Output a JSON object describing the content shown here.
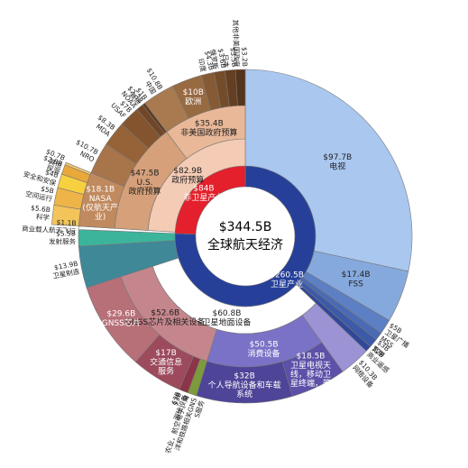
{
  "chart_data": {
    "type": "sunburst",
    "center": {
      "value": 344.5,
      "value_label": "$344.5B",
      "name": "全球航天经济"
    },
    "nodes": [
      {
        "name": "卫星产业",
        "value": 260.5,
        "value_label": "$260.5B",
        "color": "#26409a",
        "children": [
          {
            "name": "电视",
            "value": 97.7,
            "value_label": "$97.7B",
            "color": "#a9c7ef"
          },
          {
            "name": "FSS",
            "value": 17.4,
            "value_label": "$17.4B",
            "color": "#86a9dd"
          },
          {
            "name": "卫星广播",
            "value": 5,
            "value_label": "$5B",
            "color": "#5d7fc4"
          },
          {
            "name": "MSS",
            "value": 2.6,
            "color": "#4a6ab5"
          },
          {
            "name": "宽带",
            "value": 3,
            "value_label": "$3B",
            "color": "#3d5aa8"
          },
          {
            "name": "商业遥感",
            "value": 2,
            "value_label": "$2B",
            "color": "#30489a"
          },
          {
            "name": "卫星地面设备",
            "value": 60.8,
            "value_label": "$60.8B",
            "color": "#ffffff",
            "children": [
              {
                "name": "网络设备",
                "value": 10.3,
                "value_label": "$10.3B",
                "color": "#9b93d4"
              },
              {
                "name": "消费设备",
                "value": 50.5,
                "value_label": "$50.5B",
                "color": "#7a72c6",
                "children": [
                  {
                    "name": "卫星电视天线，移动卫星终端，等",
                    "value": 18.5,
                    "value_label": "$18.5B",
                    "color": "#5c50a8"
                  },
                  {
                    "name": "个人导航设备和车载系统",
                    "value": 32,
                    "value_label": "$32B",
                    "color": "#4e4498"
                  }
                ]
              },
              {
                "name": "GNSS芯片及相关设备",
                "value": 52.6,
                "value_label": "$52.6B",
                "color": "#c4868c",
                "children": [
                  {
                    "name": "农业，航空电子、海洋和铁路相关GNSS服务",
                    "value": 3,
                    "value_label": "$3B",
                    "color": "#7d9a3c"
                  },
                  {
                    "name": "测绘设备",
                    "value": 3,
                    "value_label": "$3B",
                    "color": "#8c3448"
                  },
                  {
                    "name": "交通信息服务",
                    "value": 17,
                    "value_label": "$17B",
                    "color": "#9c4a5c"
                  },
                  {
                    "name": "GNSS芯片",
                    "value": 29.6,
                    "value_label": "$29.6B",
                    "color": "#b76f78"
                  }
                ]
              }
            ]
          },
          {
            "name": "卫星制造",
            "value": 13.9,
            "value_label": "$13.9B",
            "color": "#3f8898"
          },
          {
            "name": "发射服务",
            "value": 5.5,
            "value_label": "$5.5B",
            "color": "#3cb49c"
          }
        ]
      },
      {
        "name": "非卫星产业",
        "value": 84,
        "value_label": "$84B",
        "color": "#e3202b",
        "children": [
          {
            "name": "商业载人航天飞行",
            "value": 1.1,
            "value_label": "$1.1B",
            "color": "#ffffff"
          },
          {
            "name": "政府预算",
            "value": 82.9,
            "value_label": "$82.9B",
            "color": "#f4cbb4",
            "children": [
              {
                "name": "U.S. 政府预算",
                "value": 47.5,
                "value_label": "$47.5B",
                "color": "#d5a07a",
                "children": [
                  {
                    "name": "NASA (仅航天产业)",
                    "value": 18.1,
                    "value_label": "$18.1B",
                    "color": "#c08a5e",
                    "children": [
                      {
                        "name": "科学",
                        "value": 5.6,
                        "value_label": "$5.6B",
                        "color": "#f3c45a"
                      },
                      {
                        "name": "空间运行",
                        "value": 5,
                        "value_label": "$5B",
                        "color": "#eeb448"
                      },
                      {
                        "name": "安全和安保",
                        "value": 4,
                        "value_label": "$4B",
                        "color": "#f7d040"
                      },
                      {
                        "name": "探测",
                        "value": 2.8,
                        "value_label": "$2.8B",
                        "color": "#e9a83a"
                      },
                      {
                        "name": "其他",
                        "value": 0.7,
                        "value_label": "$0.7B",
                        "color": "#f5c870"
                      }
                    ]
                  },
                  {
                    "name": "NRO",
                    "value": 10.7,
                    "value_label": "$10.7B",
                    "color": "#a8744a"
                  },
                  {
                    "name": "MDA",
                    "value": 8.3,
                    "value_label": "$8.3B",
                    "color": "#966238"
                  },
                  {
                    "name": "USAF",
                    "value": 7,
                    "value_label": "$7B",
                    "color": "#84542e"
                  },
                  {
                    "name": "NOAA",
                    "value": 2.3,
                    "value_label": "$2.3B",
                    "color": "#704626"
                  },
                  {
                    "name": "其他",
                    "value": 1,
                    "value_label": "$1B",
                    "color": "#5e3a1e"
                  }
                ]
              },
              {
                "name": "非美国政府预算",
                "value": 35.4,
                "value_label": "$35.4B",
                "color": "#e9b898",
                "children": [
                  {
                    "name": "中国",
                    "value": 10.8,
                    "value_label": "$10.8B",
                    "color": "#a97a50"
                  },
                  {
                    "name": "欧洲",
                    "value": 10,
                    "value_label": "$10B",
                    "color": "#986a42"
                  },
                  {
                    "name": "印度",
                    "value": 4.3,
                    "value_label": "$4.3B",
                    "color": "#865a34"
                  },
                  {
                    "name": "俄罗斯",
                    "value": 3.6,
                    "value_label": "$3.6B",
                    "color": "#744c2a"
                  },
                  {
                    "name": "日本",
                    "value": 3.5,
                    "value_label": "$3.5B",
                    "color": "#643f22"
                  },
                  {
                    "name": "其他非美国政府",
                    "value": 3.2,
                    "value_label": "$3.2B",
                    "color": "#54341c"
                  }
                ]
              }
            ]
          }
        ]
      }
    ]
  }
}
